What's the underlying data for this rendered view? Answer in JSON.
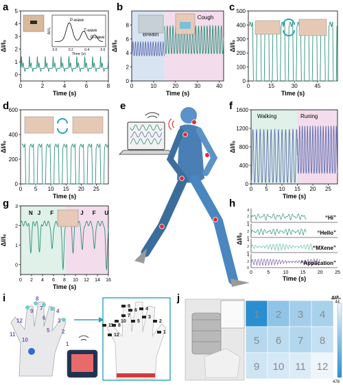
{
  "panels": [
    {
      "id": "a",
      "letter": "a"
    },
    {
      "id": "b",
      "letter": "b"
    },
    {
      "id": "c",
      "letter": "c"
    },
    {
      "id": "d",
      "letter": "d"
    },
    {
      "id": "e",
      "letter": "e"
    },
    {
      "id": "f",
      "letter": "f"
    },
    {
      "id": "g",
      "letter": "g"
    },
    {
      "id": "h",
      "letter": "h"
    },
    {
      "id": "i",
      "letter": "i"
    },
    {
      "id": "j",
      "letter": "j"
    }
  ],
  "colors": {
    "teal": "#2a8f78",
    "blue": "#5f6fb0",
    "green_region": "#dff1e9",
    "pink_region": "#f3dcec",
    "blue_region": "#d9e4f3",
    "purple": "#7a5aa8",
    "heat_high": "#2a8fd0",
    "heat_low": "#eef6fb"
  },
  "chart_data": [
    {
      "id": "a",
      "type": "line",
      "ylabel": "ΔI/I₀",
      "xlabel": "Time (s)",
      "xlim": [
        0,
        8
      ],
      "ylim": [
        -0.5,
        5
      ],
      "xticks": [
        "0",
        "2",
        "4",
        "6",
        "8"
      ],
      "yticks": [
        "0",
        "1",
        "2",
        "3",
        "4",
        "5"
      ],
      "series": [
        {
          "period": 0.72,
          "base": 0.5,
          "peak": 1.45,
          "shape": "pulse"
        }
      ],
      "inset": {
        "ylabel": "ΔI/I₀",
        "xlabel": "Time (s)",
        "xticks": [
          "0.0",
          "0.2",
          "0.4",
          "0.6"
        ],
        "labels": [
          "P-wave",
          "T-wave",
          "D-wave"
        ]
      }
    },
    {
      "id": "b",
      "type": "line",
      "ylabel": "ΔI/I₀",
      "xlabel": "Time (s)",
      "xlim": [
        0,
        42
      ],
      "ylim": [
        0,
        10
      ],
      "xticks": [
        "0",
        "10",
        "20",
        "30",
        "40"
      ],
      "yticks": [
        "0",
        "2",
        "4",
        "6",
        "8"
      ],
      "regions": [
        {
          "label": "Breath",
          "from": 0,
          "to": 15
        },
        {
          "label": "Cough",
          "from": 15,
          "to": 42
        }
      ],
      "series": [
        {
          "name": "",
          "from": 0,
          "to": 15,
          "period": 1.15,
          "base": 3.6,
          "peak": 5.6
        },
        {
          "name": "",
          "from": 15,
          "to": 42,
          "period": 1.3,
          "base": 3.9,
          "peak": 7.9
        }
      ]
    },
    {
      "id": "c",
      "type": "line",
      "ylabel": "ΔI/I₀",
      "xlabel": "Time (s)",
      "xlim": [
        0,
        58
      ],
      "ylim": [
        0,
        500
      ],
      "xticks": [
        "0",
        "15",
        "30",
        "45"
      ],
      "yticks": [
        "0",
        "100",
        "200",
        "300",
        "400",
        "500"
      ],
      "series": [
        {
          "period": 5.2,
          "base": 0,
          "peak": 405,
          "shape": "plateau"
        }
      ]
    },
    {
      "id": "d",
      "type": "line",
      "ylabel": "ΔI/I₀",
      "xlabel": "Time (s)",
      "xlim": [
        0,
        29
      ],
      "ylim": [
        0,
        600
      ],
      "xticks": [
        "0",
        "5",
        "10",
        "15",
        "20",
        "25"
      ],
      "yticks": [
        "0",
        "200",
        "400",
        "600"
      ],
      "series": [
        {
          "period": 2.75,
          "base": 0,
          "peak": 310,
          "shape": "plateau"
        }
      ]
    },
    {
      "id": "f",
      "type": "line",
      "ylabel": "ΔI/I₀",
      "xlabel": "Time (s)",
      "xlim": [
        0,
        28
      ],
      "ylim": [
        0,
        1600
      ],
      "xticks": [
        "0",
        "5",
        "10",
        "15",
        "20",
        "25"
      ],
      "yticks": [
        "0",
        "400",
        "800",
        "1200",
        "1600"
      ],
      "regions": [
        {
          "label": "Walking",
          "from": 0,
          "to": 15
        },
        {
          "label": "Runing",
          "from": 15,
          "to": 28
        }
      ],
      "series": [
        {
          "from": 0,
          "to": 15,
          "period": 1.18,
          "base": 30,
          "peak": 1180
        },
        {
          "from": 15,
          "to": 28,
          "period": 0.85,
          "base": 230,
          "peak": 1250
        }
      ]
    },
    {
      "id": "g",
      "type": "line",
      "ylabel": "ΔI/I₀",
      "xlabel": "Time (s)",
      "xlim": [
        0,
        16
      ],
      "ylim": [
        -0.5,
        3
      ],
      "xticks": [
        "0",
        "2",
        "4",
        "6",
        "8",
        "10",
        "12",
        "14",
        "16"
      ],
      "yticks": [
        "0",
        "1",
        "2",
        "3"
      ],
      "regions": [
        {
          "from": 0,
          "to": 8.2
        },
        {
          "from": 8.2,
          "to": 16
        }
      ],
      "letters": [
        {
          "t": 1.5,
          "label": "N"
        },
        {
          "t": 3.1,
          "label": "J"
        },
        {
          "t": 5.4,
          "label": "F"
        },
        {
          "t": 7.4,
          "label": "U"
        },
        {
          "t": 9.2,
          "label": "N"
        },
        {
          "t": 10.9,
          "label": "J"
        },
        {
          "t": 13.1,
          "label": "F"
        },
        {
          "t": 15.3,
          "label": "U"
        }
      ]
    },
    {
      "id": "h",
      "type": "line",
      "ylabel": "ΔI/I₀",
      "xlabel": "Time (s)",
      "xlim": [
        0,
        25
      ],
      "ylim": [
        0,
        4
      ],
      "xticks": [
        "0",
        "5",
        "10",
        "15",
        "20",
        "25"
      ],
      "rows": [
        {
          "label": "“Hi”",
          "yticks": [
            "0",
            "2",
            "4"
          ],
          "to": 16
        },
        {
          "label": "“Hello”",
          "yticks": [
            "0",
            "2",
            "4"
          ],
          "to": 16
        },
        {
          "label": "“MXene”",
          "yticks": [
            "0",
            "2",
            "4"
          ],
          "to": 18
        },
        {
          "label": "“Application”",
          "yticks": [
            "0",
            "2",
            "4"
          ],
          "to": 20
        }
      ]
    },
    {
      "id": "j",
      "type": "heatmap",
      "cells": [
        1,
        2,
        3,
        4,
        5,
        6,
        7,
        8,
        9,
        10,
        11,
        12
      ],
      "values": [
        478,
        160,
        120,
        110,
        90,
        80,
        95,
        70,
        60,
        55,
        50,
        44
      ],
      "colorbar": {
        "label": "ΔI/I₀",
        "max": "44",
        "min": "478"
      }
    }
  ],
  "panel_i": {
    "fingers": [
      "1",
      "2",
      "3",
      "4",
      "5",
      "6",
      "7",
      "8",
      "9",
      "10",
      "11",
      "12"
    ]
  }
}
